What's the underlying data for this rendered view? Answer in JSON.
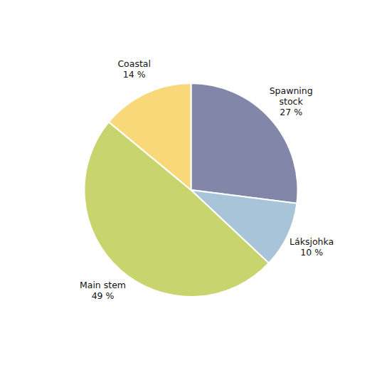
{
  "chart_data": {
    "type": "pie",
    "categories": [
      "Spawning\nstock\n27 %",
      "Láksjohka\n10 %",
      "Main stem\n49 %",
      "Coastal\n14 %"
    ],
    "values": [
      27,
      10,
      49,
      14
    ],
    "colors": [
      "#8287aa",
      "#a8c4d8",
      "#c8d46e",
      "#f9d87a"
    ]
  }
}
